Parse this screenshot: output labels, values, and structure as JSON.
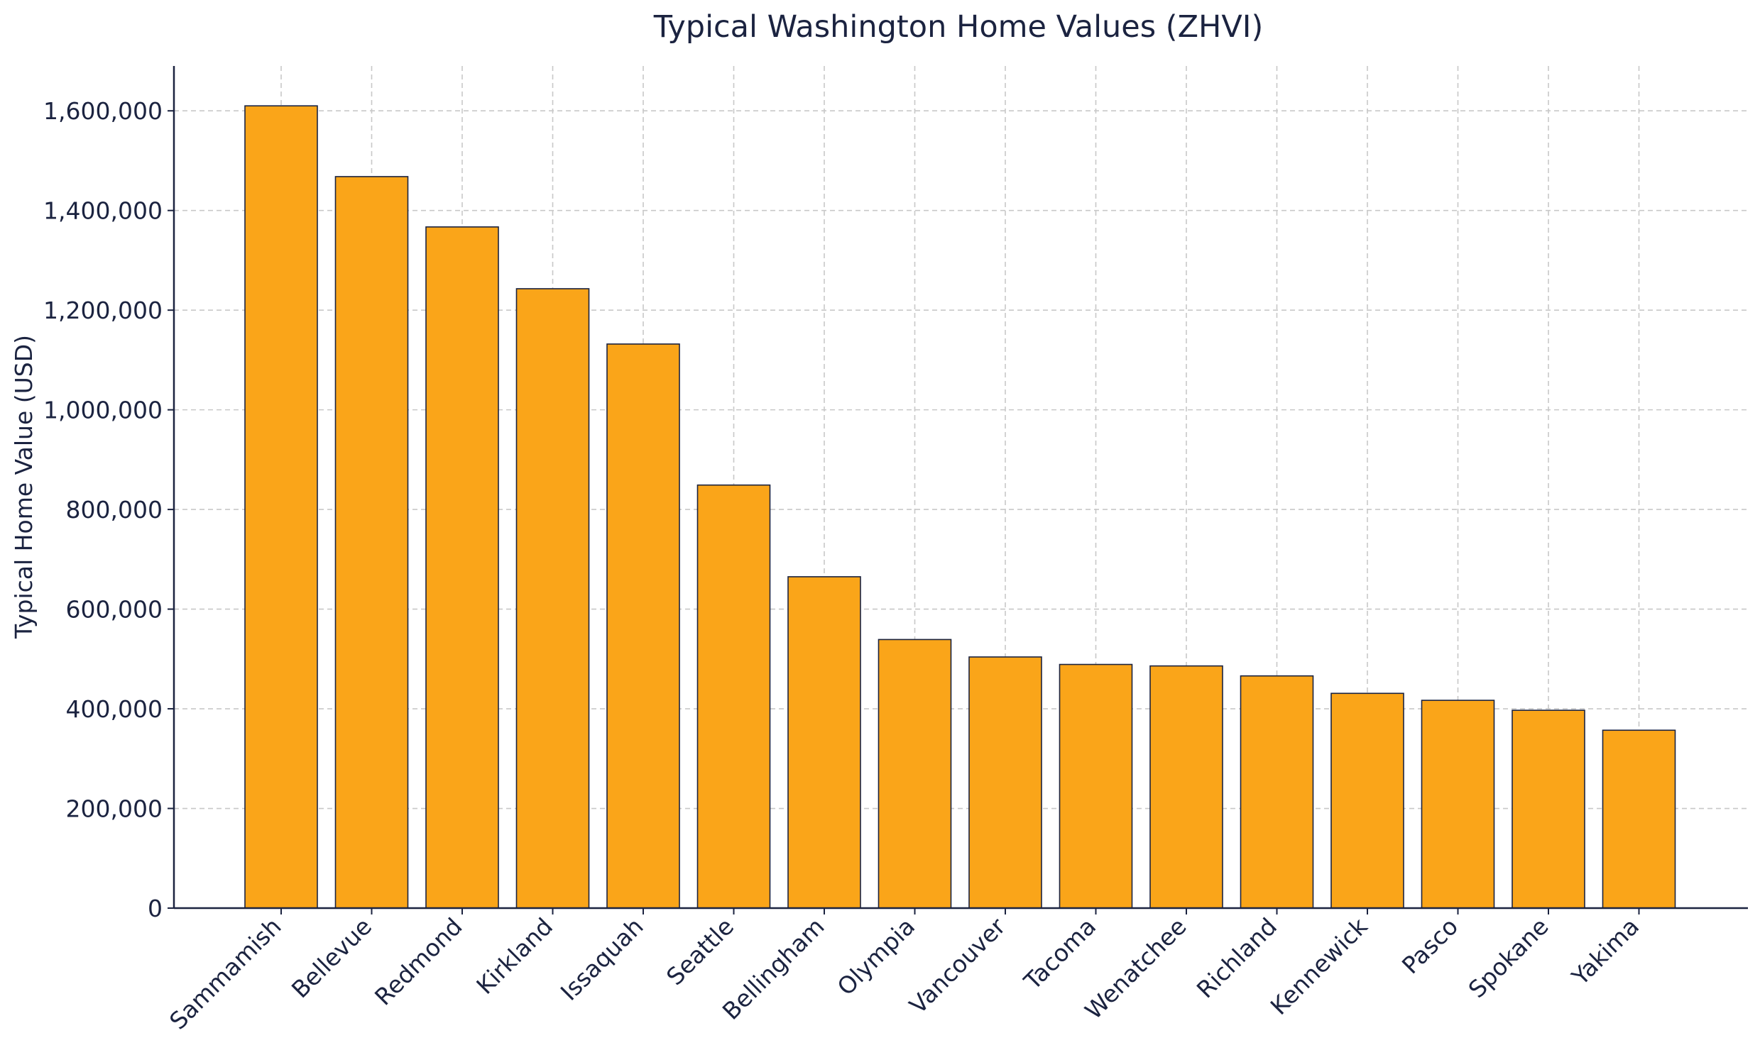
{
  "chart_data": {
    "type": "bar",
    "title": "Typical Washington Home Values (ZHVI)",
    "xlabel": "",
    "ylabel": "Typical Home Value (USD)",
    "categories": [
      "Sammamish",
      "Bellevue",
      "Redmond",
      "Kirkland",
      "Issaquah",
      "Seattle",
      "Bellingham",
      "Olympia",
      "Vancouver",
      "Tacoma",
      "Wenatchee",
      "Richland",
      "Kennewick",
      "Pasco",
      "Spokane",
      "Yakima"
    ],
    "values": [
      1610000,
      1468000,
      1367000,
      1243000,
      1132000,
      849000,
      665000,
      539000,
      504000,
      489000,
      486000,
      466000,
      431000,
      417000,
      397000,
      357000
    ],
    "ylim": [
      0,
      1690000
    ],
    "yticks": [
      0,
      200000,
      400000,
      600000,
      800000,
      1000000,
      1200000,
      1400000,
      1600000
    ],
    "ytick_labels": [
      "0",
      "200,000",
      "400,000",
      "600,000",
      "800,000",
      "1,000,000",
      "1,200,000",
      "1,400,000",
      "1,600,000"
    ],
    "grid": true,
    "bar_color": "#FAA519",
    "edge_color": "#1B2340",
    "text_color": "#1B2340"
  }
}
